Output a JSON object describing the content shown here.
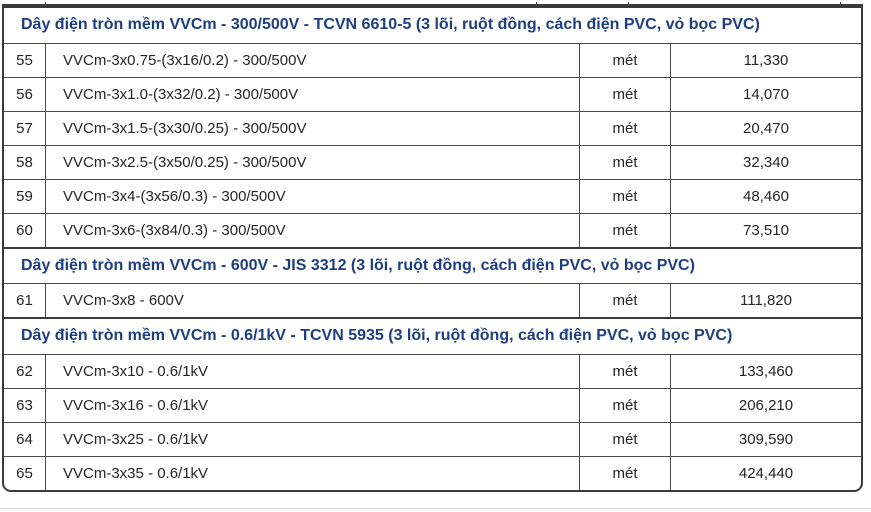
{
  "colors": {
    "section_title": "#1d3e7f",
    "body_text": "#262626",
    "border": "#3b3b3b"
  },
  "table": {
    "sections": [
      {
        "title": "Dây điện tròn mềm VVCm - 300/500V - TCVN 6610-5 (3 lõi, ruột đồng, cách điện PVC, vỏ bọc PVC)",
        "rows": [
          {
            "no": "55",
            "desc": "VVCm-3x0.75-(3x16/0.2) - 300/500V",
            "unit": "mét",
            "price": "11,330"
          },
          {
            "no": "56",
            "desc": "VVCm-3x1.0-(3x32/0.2) - 300/500V",
            "unit": "mét",
            "price": "14,070"
          },
          {
            "no": "57",
            "desc": "VVCm-3x1.5-(3x30/0.25) - 300/500V",
            "unit": "mét",
            "price": "20,470"
          },
          {
            "no": "58",
            "desc": "VVCm-3x2.5-(3x50/0.25) - 300/500V",
            "unit": "mét",
            "price": "32,340"
          },
          {
            "no": "59",
            "desc": "VVCm-3x4-(3x56/0.3) - 300/500V",
            "unit": "mét",
            "price": "48,460"
          },
          {
            "no": "60",
            "desc": "VVCm-3x6-(3x84/0.3) - 300/500V",
            "unit": "mét",
            "price": "73,510"
          }
        ]
      },
      {
        "title": "Dây điện tròn mềm VVCm - 600V - JIS 3312  (3 lõi, ruột đồng, cách điện PVC, vỏ bọc PVC)",
        "rows": [
          {
            "no": "61",
            "desc": "VVCm-3x8 - 600V",
            "unit": "mét",
            "price": "111,820"
          }
        ]
      },
      {
        "title": "Dây điện tròn mềm VVCm - 0.6/1kV - TCVN 5935 (3 lõi, ruột đồng, cách điện PVC, vỏ bọc PVC)",
        "rows": [
          {
            "no": "62",
            "desc": "VVCm-3x10 - 0.6/1kV",
            "unit": "mét",
            "price": "133,460"
          },
          {
            "no": "63",
            "desc": "VVCm-3x16 - 0.6/1kV",
            "unit": "mét",
            "price": "206,210"
          },
          {
            "no": "64",
            "desc": "VVCm-3x25 - 0.6/1kV",
            "unit": "mét",
            "price": "309,590"
          },
          {
            "no": "65",
            "desc": "VVCm-3x35 - 0.6/1kV",
            "unit": "mét",
            "price": "424,440"
          }
        ]
      }
    ]
  }
}
